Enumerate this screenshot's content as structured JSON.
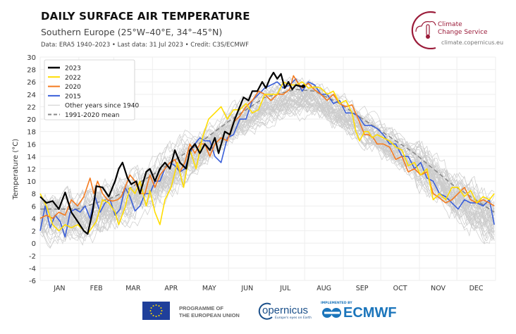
{
  "header": {
    "title": "DAILY SURFACE AIR TEMPERATURE",
    "subtitle": "Southern Europe (25°W–40°E, 34°–45°N)",
    "meta": "Data: ERA5 1940–2023 • Last data: 31 Jul 2023 • Credit: C3S/ECMWF"
  },
  "logos": {
    "c3s_line1": "Climate",
    "c3s_line2": "Change Service",
    "c3s_url": "climate.copernicus.eu",
    "eu_line1": "PROGRAMME OF",
    "eu_line2": "THE EUROPEAN UNION",
    "copernicus": "opernicus",
    "copernicus_tagline": "Europe's eyes on Earth",
    "ecmwf_tag": "IMPLEMENTED BY",
    "ecmwf": "ECMWF"
  },
  "colors": {
    "y2023": "#000000",
    "y2022": "#ffdd00",
    "y2020": "#f47b20",
    "y2015": "#3a5fd9",
    "other": "#cccccc",
    "mean": "#888888",
    "c3s": "#9b1c3a"
  },
  "chart_data": {
    "type": "line",
    "ylabel": "Temperature (°C)",
    "ylim": [
      -6,
      30
    ],
    "yticks": [
      -6,
      -4,
      -2,
      0,
      2,
      4,
      6,
      8,
      10,
      12,
      14,
      16,
      18,
      20,
      22,
      24,
      26,
      28,
      30
    ],
    "xlim_day_of_year": [
      0,
      365
    ],
    "month_labels": [
      "JAN",
      "FEB",
      "MAR",
      "APR",
      "MAY",
      "JUN",
      "JUL",
      "AUG",
      "SEP",
      "OCT",
      "NOV",
      "DEC"
    ],
    "grid": true,
    "legend_position": "top-left",
    "legend": [
      "2023",
      "2022",
      "2020",
      "2015",
      "Other years since 1940",
      "1991-2020 mean"
    ],
    "series": [
      {
        "name": "2023",
        "color": "#000000",
        "x": [
          0,
          5,
          10,
          15,
          20,
          25,
          30,
          35,
          38,
          42,
          45,
          50,
          55,
          60,
          63,
          66,
          70,
          73,
          77,
          80,
          85,
          88,
          92,
          96,
          100,
          104,
          108,
          112,
          117,
          120,
          124,
          128,
          132,
          136,
          140,
          143,
          148,
          152,
          156,
          160,
          163,
          167,
          170,
          174,
          178,
          181,
          184,
          187,
          190,
          193,
          196,
          199,
          202,
          205,
          208,
          211
        ],
        "y": [
          7.5,
          6.5,
          6.8,
          5.5,
          8.2,
          5,
          3.5,
          2,
          1.5,
          5,
          9.2,
          9,
          7.5,
          10,
          12,
          13,
          10.5,
          9.5,
          10,
          8,
          11.5,
          12,
          10,
          12,
          13,
          12,
          15,
          13,
          12,
          15,
          16,
          14.5,
          16,
          15,
          17,
          14.5,
          18,
          17.5,
          20,
          22,
          23.5,
          23,
          24.5,
          24.5,
          26,
          25,
          26.5,
          27.5,
          26.5,
          27.3,
          25,
          26,
          24.8,
          25.5,
          25.3,
          25.3
        ]
      },
      {
        "name": "2022",
        "color": "#ffdd00",
        "x": [
          0,
          5,
          10,
          15,
          20,
          25,
          30,
          38,
          45,
          50,
          55,
          60,
          63,
          68,
          72,
          76,
          80,
          85,
          88,
          92,
          96,
          100,
          105,
          110,
          115,
          120,
          125,
          130,
          135,
          140,
          145,
          150,
          155,
          160,
          165,
          170,
          175,
          180,
          185,
          190,
          195,
          200,
          205,
          210,
          215,
          220,
          225,
          230,
          235,
          240,
          245,
          250,
          253,
          256,
          260,
          263,
          266,
          270,
          275,
          280,
          285,
          290,
          295,
          300,
          305,
          310,
          315,
          320,
          325,
          330,
          335,
          340,
          345,
          350,
          355,
          360,
          364
        ],
        "y": [
          8,
          6,
          3,
          2,
          3,
          2.5,
          3,
          1.5,
          3.5,
          7,
          6.5,
          5,
          3,
          5.8,
          9,
          8,
          10,
          6,
          8.5,
          5,
          3,
          7,
          9,
          13,
          9,
          15,
          12,
          17,
          20,
          21,
          22,
          20,
          21.5,
          21.5,
          22.5,
          21,
          21.5,
          24,
          24,
          24,
          26,
          25.5,
          25.5,
          26,
          25,
          25.2,
          25,
          24,
          24.5,
          22.5,
          23,
          21,
          18,
          16.5,
          18,
          18,
          17,
          17.5,
          17,
          16.5,
          15.5,
          15,
          12.5,
          13,
          11,
          12,
          7,
          8,
          7,
          9,
          9,
          7.5,
          8.5,
          6.5,
          7.5,
          7,
          8
        ]
      },
      {
        "name": "2020",
        "color": "#f47b20",
        "x": [
          0,
          5,
          10,
          15,
          20,
          25,
          30,
          35,
          40,
          43,
          46,
          50,
          54,
          58,
          62,
          65,
          68,
          72,
          76,
          80,
          84,
          88,
          92,
          96,
          100,
          104,
          108,
          112,
          116,
          120,
          124,
          128,
          132,
          136,
          140,
          145,
          150,
          155,
          160,
          165,
          170,
          175,
          180,
          185,
          190,
          195,
          200,
          203,
          206,
          210,
          215,
          220,
          225,
          230,
          235,
          240,
          245,
          250,
          255,
          260,
          263,
          267,
          270,
          275,
          280,
          285,
          290,
          295,
          300,
          305,
          310,
          315,
          320,
          325,
          330,
          335,
          340,
          345,
          350,
          355,
          360,
          364
        ],
        "y": [
          4,
          4.5,
          4,
          5,
          4.5,
          7,
          6,
          7.5,
          10.5,
          8,
          10,
          8,
          7,
          6.8,
          7,
          7.5,
          9,
          11,
          10,
          8,
          8,
          11,
          9,
          11,
          12,
          13,
          13.5,
          11.5,
          13,
          16,
          14.5,
          16,
          16,
          14,
          16,
          17,
          16.5,
          19.5,
          20.5,
          22,
          23,
          24.5,
          24,
          23,
          24,
          24,
          24.8,
          27,
          26,
          25,
          25.8,
          24.7,
          24,
          23,
          24,
          22.5,
          22,
          22.3,
          20,
          17.5,
          17.5,
          17,
          16,
          16,
          15.5,
          13.5,
          14,
          11.5,
          12,
          11,
          11.5,
          8,
          7.3,
          6.5,
          7,
          8,
          9,
          7,
          6.5,
          7,
          6.5,
          6
        ]
      },
      {
        "name": "2015",
        "color": "#3a5fd9",
        "x": [
          0,
          4,
          8,
          12,
          16,
          20,
          24,
          28,
          32,
          36,
          40,
          44,
          48,
          52,
          56,
          60,
          64,
          68,
          72,
          76,
          80,
          84,
          88,
          92,
          96,
          100,
          104,
          108,
          112,
          116,
          120,
          124,
          128,
          132,
          136,
          140,
          145,
          150,
          155,
          160,
          165,
          170,
          175,
          180,
          185,
          190,
          195,
          200,
          205,
          210,
          215,
          220,
          225,
          230,
          235,
          240,
          245,
          250,
          255,
          260,
          265,
          270,
          275,
          280,
          285,
          290,
          295,
          300,
          305,
          310,
          315,
          320,
          325,
          330,
          335,
          340,
          345,
          350,
          355,
          360,
          364
        ],
        "y": [
          2,
          6,
          2.5,
          4.5,
          3.5,
          1,
          5,
          5.5,
          5,
          6,
          4,
          7.5,
          5,
          6.5,
          7,
          4.5,
          5.5,
          9,
          7.5,
          5.2,
          6,
          8,
          8,
          10,
          10,
          12,
          13,
          12.5,
          11.5,
          12,
          14.5,
          16,
          17,
          16.5,
          16.5,
          14,
          13,
          17,
          17.5,
          20,
          20,
          23,
          24,
          25,
          25.5,
          26,
          25,
          25.5,
          26.5,
          24.5,
          26,
          25.5,
          24,
          24,
          22.5,
          23,
          21,
          21,
          20.5,
          19,
          19,
          18.5,
          17.5,
          16,
          16,
          14,
          14,
          12,
          13,
          10.5,
          10,
          8,
          7.5,
          6.5,
          5.5,
          7,
          6.5,
          6.5,
          6,
          7,
          3
        ]
      },
      {
        "name": "1991-2020 mean",
        "color": "#888888",
        "dashed": true,
        "x": [
          0,
          30,
          60,
          90,
          120,
          150,
          180,
          205,
          220,
          240,
          270,
          300,
          330,
          364
        ],
        "y": [
          5.5,
          5.5,
          7.5,
          11,
          15,
          19.5,
          23.5,
          24.8,
          24.5,
          22.5,
          18.5,
          14.5,
          9.5,
          5
        ]
      }
    ]
  }
}
